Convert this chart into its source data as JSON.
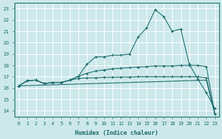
{
  "xlabel": "Humidex (Indice chaleur)",
  "bg_color": "#cce8eb",
  "grid_color": "#ffffff",
  "line_color": "#1a6b6b",
  "xlim": [
    -0.5,
    23.5
  ],
  "ylim": [
    13.5,
    23.5
  ],
  "xtick_labels": [
    "0",
    "1",
    "2",
    "3",
    "4",
    "5",
    "6",
    "7",
    "8",
    "9",
    "10",
    "11",
    "12",
    "13",
    "14",
    "15",
    "16",
    "17",
    "18",
    "19",
    "20",
    "21",
    "22",
    "23"
  ],
  "yticks": [
    14,
    15,
    16,
    17,
    18,
    19,
    20,
    21,
    22,
    23
  ],
  "line1_x": [
    0,
    1,
    2,
    3,
    4,
    5,
    6,
    7,
    8,
    9,
    10,
    11,
    12,
    13,
    14,
    15,
    16,
    17,
    18,
    19,
    20,
    21,
    22,
    23
  ],
  "line1_y": [
    16.2,
    16.65,
    16.7,
    16.4,
    16.5,
    16.5,
    16.7,
    17.05,
    18.1,
    18.75,
    18.75,
    18.9,
    18.9,
    19.0,
    20.5,
    21.3,
    22.9,
    22.3,
    21.0,
    21.2,
    18.1,
    16.8,
    15.6,
    14.2
  ],
  "line2_x": [
    0,
    1,
    2,
    3,
    4,
    5,
    6,
    7,
    8,
    9,
    10,
    11,
    12,
    13,
    14,
    15,
    16,
    17,
    18,
    19,
    20,
    21,
    22,
    23
  ],
  "line2_y": [
    16.2,
    16.65,
    16.7,
    16.4,
    16.5,
    16.5,
    16.7,
    17.05,
    17.3,
    17.5,
    17.6,
    17.7,
    17.75,
    17.8,
    17.85,
    17.9,
    17.95,
    17.95,
    17.95,
    18.0,
    18.0,
    18.0,
    17.9,
    13.7
  ],
  "line3_x": [
    0,
    1,
    2,
    3,
    4,
    5,
    6,
    7,
    8,
    9,
    10,
    11,
    12,
    13,
    14,
    15,
    16,
    17,
    18,
    19,
    20,
    21,
    22,
    23
  ],
  "line3_y": [
    16.2,
    16.65,
    16.7,
    16.4,
    16.5,
    16.5,
    16.7,
    16.85,
    16.9,
    16.9,
    16.95,
    16.95,
    16.97,
    16.97,
    17.0,
    17.0,
    17.0,
    17.0,
    17.0,
    17.0,
    17.0,
    17.0,
    16.9,
    13.7
  ],
  "line4_x": [
    0,
    22,
    23
  ],
  "line4_y": [
    16.2,
    16.7,
    13.7
  ]
}
